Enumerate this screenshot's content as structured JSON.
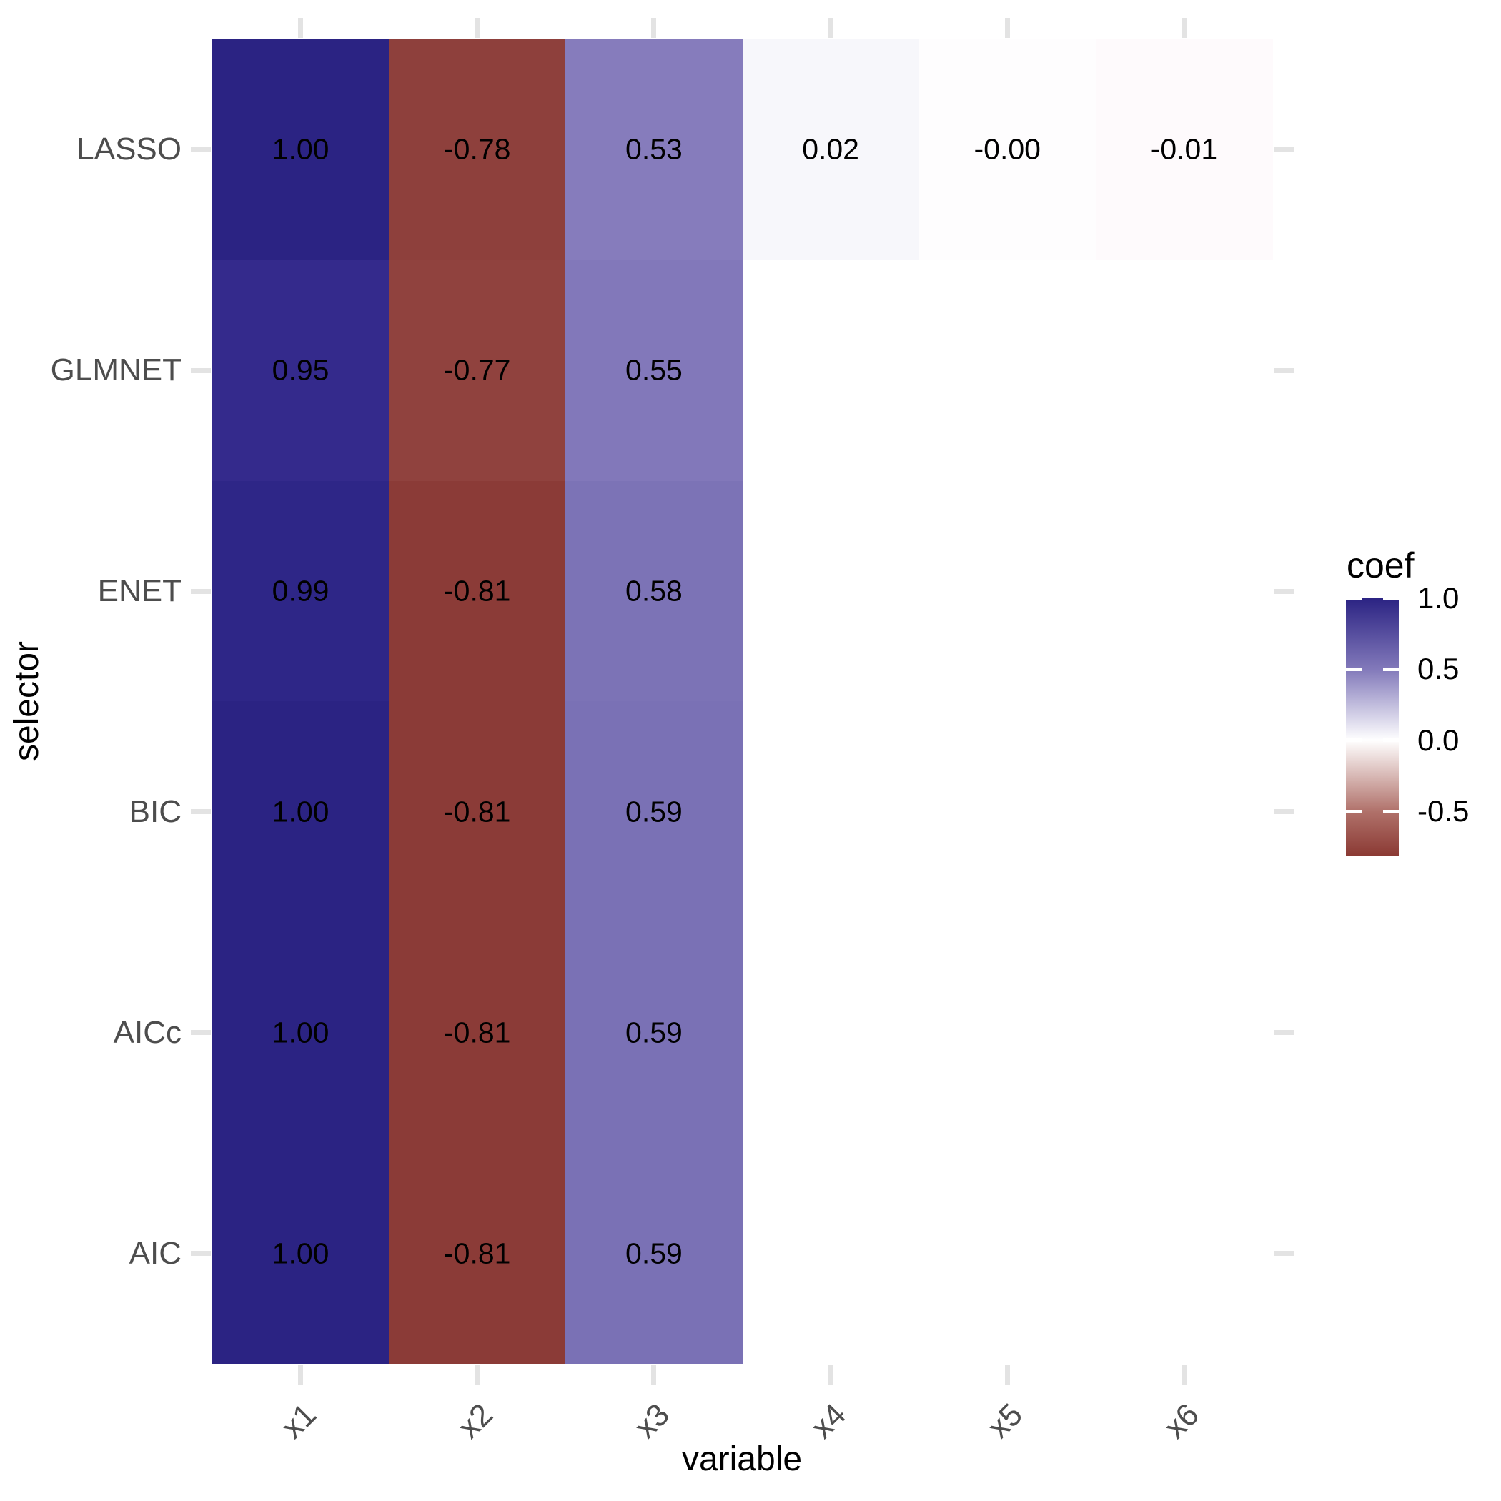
{
  "chart_data": {
    "type": "heatmap",
    "title": "",
    "xlabel": "variable",
    "ylabel": "selector",
    "x_categories": [
      "x1",
      "x2",
      "x3",
      "x4",
      "x5",
      "x6"
    ],
    "y_categories": [
      "LASSO",
      "GLMNET",
      "ENET",
      "BIC",
      "AICc",
      "AIC"
    ],
    "grid": "off",
    "legend_position": "right",
    "series": [
      {
        "name": "LASSO",
        "values": [
          1.0,
          -0.78,
          0.53,
          0.02,
          -0.0,
          -0.01
        ]
      },
      {
        "name": "GLMNET",
        "values": [
          0.95,
          -0.77,
          0.55,
          null,
          null,
          null
        ]
      },
      {
        "name": "ENET",
        "values": [
          0.99,
          -0.81,
          0.58,
          null,
          null,
          null
        ]
      },
      {
        "name": "BIC",
        "values": [
          1.0,
          -0.81,
          0.59,
          null,
          null,
          null
        ]
      },
      {
        "name": "AICc",
        "values": [
          1.0,
          -0.81,
          0.59,
          null,
          null,
          null
        ]
      },
      {
        "name": "AIC",
        "values": [
          1.0,
          -0.81,
          0.59,
          null,
          null,
          null
        ]
      }
    ],
    "cells": [
      {
        "row": "LASSO",
        "col": "x1",
        "label": "1.00",
        "color": "#2B2383"
      },
      {
        "row": "LASSO",
        "col": "x2",
        "label": "-0.78",
        "color": "#8E403C"
      },
      {
        "row": "LASSO",
        "col": "x3",
        "label": "0.53",
        "color": "#867CBC"
      },
      {
        "row": "LASSO",
        "col": "x4",
        "label": "0.02",
        "color": "#F7F7FB"
      },
      {
        "row": "LASSO",
        "col": "x5",
        "label": "-0.00",
        "color": "#FEFDFE"
      },
      {
        "row": "LASSO",
        "col": "x6",
        "label": "-0.01",
        "color": "#FEFAFC"
      },
      {
        "row": "GLMNET",
        "col": "x1",
        "label": "0.95",
        "color": "#342A8C"
      },
      {
        "row": "GLMNET",
        "col": "x2",
        "label": "-0.77",
        "color": "#90423E"
      },
      {
        "row": "GLMNET",
        "col": "x3",
        "label": "0.55",
        "color": "#8278BA"
      },
      {
        "row": "ENET",
        "col": "x1",
        "label": "0.99",
        "color": "#2E2687"
      },
      {
        "row": "ENET",
        "col": "x2",
        "label": "-0.81",
        "color": "#8B3B37"
      },
      {
        "row": "ENET",
        "col": "x3",
        "label": "0.58",
        "color": "#7C73B6"
      },
      {
        "row": "BIC",
        "col": "x1",
        "label": "1.00",
        "color": "#2B2383"
      },
      {
        "row": "BIC",
        "col": "x2",
        "label": "-0.81",
        "color": "#8B3B37"
      },
      {
        "row": "BIC",
        "col": "x3",
        "label": "0.59",
        "color": "#7A71B5"
      },
      {
        "row": "AICc",
        "col": "x1",
        "label": "1.00",
        "color": "#2B2383"
      },
      {
        "row": "AICc",
        "col": "x2",
        "label": "-0.81",
        "color": "#8B3B37"
      },
      {
        "row": "AICc",
        "col": "x3",
        "label": "0.59",
        "color": "#7A71B5"
      },
      {
        "row": "AIC",
        "col": "x1",
        "label": "1.00",
        "color": "#2B2383"
      },
      {
        "row": "AIC",
        "col": "x2",
        "label": "-0.81",
        "color": "#8B3B37"
      },
      {
        "row": "AIC",
        "col": "x3",
        "label": "0.59",
        "color": "#7A71B5"
      }
    ],
    "colorbar": {
      "title": "coef",
      "tick_labels": [
        "1.0",
        "0.5",
        "0.0",
        "-0.5"
      ],
      "tick_values": [
        1.0,
        0.5,
        0.0,
        -0.5
      ],
      "range_max": 1.0,
      "range_min": -0.81,
      "gradient_stops": [
        {
          "pos": 0.0,
          "color": "#2B2383"
        },
        {
          "pos": 0.276,
          "color": "#8279BA"
        },
        {
          "pos": 0.552,
          "color": "#FFFFFF"
        },
        {
          "pos": 0.829,
          "color": "#B0716A"
        },
        {
          "pos": 1.0,
          "color": "#8B3A34"
        }
      ]
    }
  }
}
